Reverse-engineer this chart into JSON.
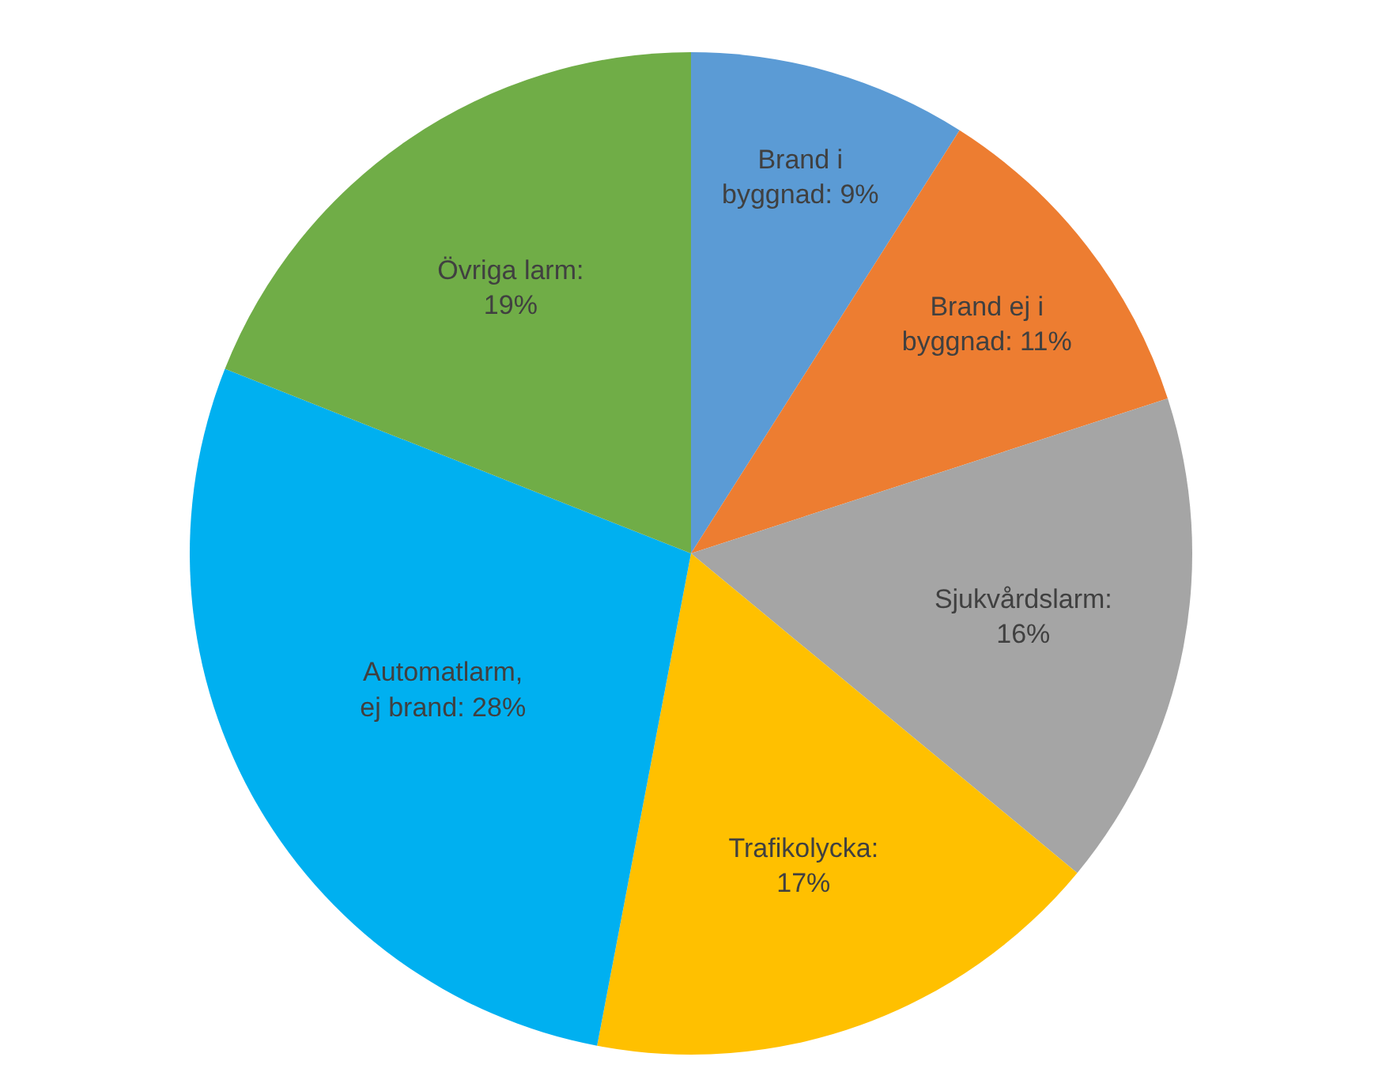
{
  "chart_data": {
    "type": "pie",
    "categories": [
      "Brand i byggnad",
      "Brand ej i byggnad",
      "Sjukvårdslarm",
      "Trafikolycka",
      "Automatlarm, ej brand",
      "Övriga larm"
    ],
    "values": [
      9,
      11,
      16,
      17,
      28,
      19
    ],
    "colors": [
      "#5b9bd5",
      "#ed7d31",
      "#a5a5a5",
      "#ffc000",
      "#00b0f0",
      "#70ad47"
    ],
    "value_labels": [
      ": 9%",
      ": 11%",
      ": 16%",
      ": 17%",
      ": 28%",
      ": 19%"
    ],
    "legend": false
  }
}
